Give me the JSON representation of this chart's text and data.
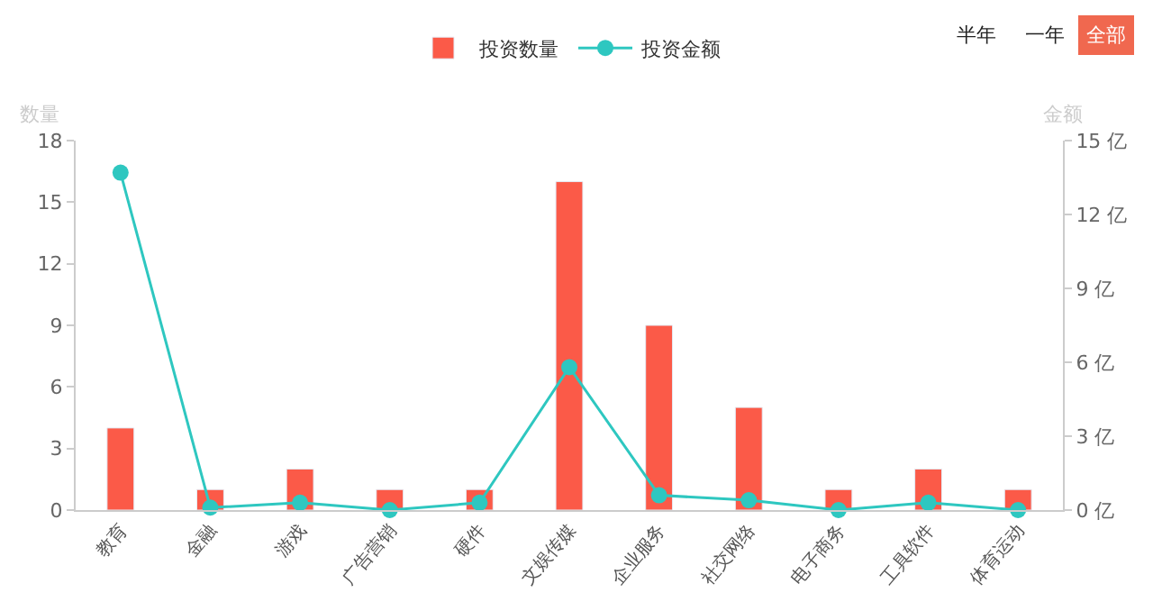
{
  "chart_data": {
    "type": "bar",
    "categories": [
      "教育",
      "金融",
      "游戏",
      "广告营销",
      "硬件",
      "文娱传媒",
      "企业服务",
      "社交网络",
      "电子商务",
      "工具软件",
      "体育运动"
    ],
    "series": [
      {
        "name": "投资数量",
        "color": "#fb5a48",
        "values": [
          4,
          1,
          2,
          1,
          1,
          16,
          9,
          5,
          1,
          2,
          1
        ]
      },
      {
        "name": "投资金额",
        "type": "line",
        "axis": "y2",
        "color": "#2ec7c0",
        "marker": "circle",
        "values": [
          13.7,
          0.1,
          0.3,
          0.0,
          0.3,
          5.8,
          0.6,
          0.4,
          0.0,
          0.3,
          0.0
        ]
      }
    ],
    "ylabel": "数量",
    "y2label": "金额",
    "ylim": [
      0,
      18
    ],
    "yticks": [
      0,
      3,
      6,
      9,
      12,
      15,
      18
    ],
    "y2lim": [
      0,
      15
    ],
    "y2ticks": [
      {
        "value": 0,
        "label": "0 亿"
      },
      {
        "value": 3,
        "label": "3 亿"
      },
      {
        "value": 6,
        "label": "6 亿"
      },
      {
        "value": 9,
        "label": "9 亿"
      },
      {
        "value": 12,
        "label": "12 亿"
      },
      {
        "value": 15,
        "label": "15 亿"
      }
    ],
    "annotations": [
      "半年",
      "一年",
      "全部"
    ],
    "legend": "top"
  }
}
